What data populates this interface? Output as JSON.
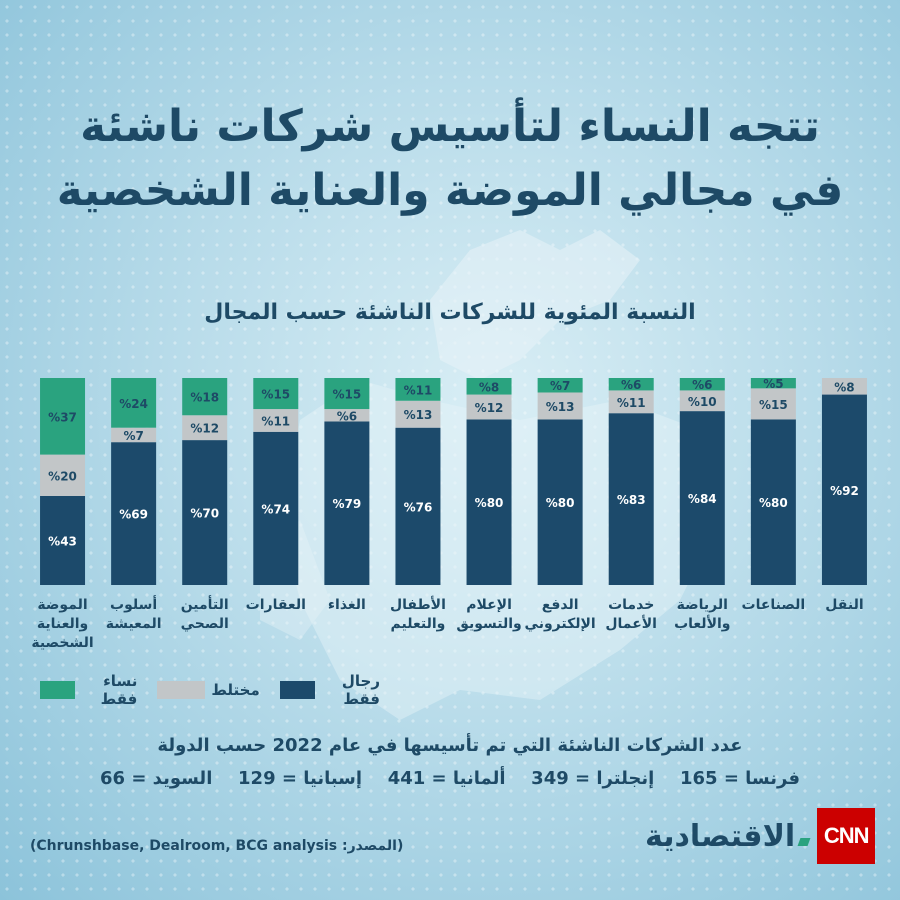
{
  "title_lines": [
    "تتجه النساء لتأسيس شركات ناشئة",
    "في مجالي الموضة والعناية الشخصية"
  ],
  "colors": {
    "men": "#1c4a6b",
    "mixed": "#c2c6c8",
    "women": "#2aa37f",
    "text": "#1e4a66"
  },
  "chart_data": {
    "type": "bar",
    "stacked": true,
    "title": "النسبة المئوية للشركات الناشئة حسب المجال",
    "ylim": [
      0,
      100
    ],
    "grid": false,
    "legend_position": "bottom-left",
    "categories": [
      "الموضة والعناية الشخصية",
      "أسلوب المعيشة",
      "التأمين الصحي",
      "العقارات",
      "الغذاء",
      "الأطفال والتعليم",
      "الإعلام والتسويق",
      "الدفع الإلكتروني",
      "خدمات الأعمال",
      "الرياضة والألعاب",
      "الصناعات",
      "النقل"
    ],
    "category_lines": [
      [
        "الموضة",
        "والعناية",
        "الشخصية"
      ],
      [
        "أسلوب",
        "المعيشة"
      ],
      [
        "التأمين",
        "الصحي"
      ],
      [
        "العقارات"
      ],
      [
        "الغذاء"
      ],
      [
        "الأطفال",
        "والتعليم"
      ],
      [
        "الإعلام",
        "والتسويق"
      ],
      [
        "الدفع",
        "الإلكتروني"
      ],
      [
        "خدمات",
        "الأعمال"
      ],
      [
        "الرياضة",
        "والألعاب"
      ],
      [
        "الصناعات"
      ],
      [
        "النقل"
      ]
    ],
    "series": [
      {
        "name": "رجال فقط",
        "color": "#1c4a6b",
        "values": [
          43,
          69,
          70,
          74,
          79,
          76,
          80,
          80,
          83,
          84,
          80,
          92
        ]
      },
      {
        "name": "مختلط",
        "color": "#c2c6c8",
        "values": [
          20,
          7,
          12,
          11,
          6,
          13,
          12,
          13,
          11,
          10,
          15,
          8
        ]
      },
      {
        "name": "نساء فقط",
        "color": "#2aa37f",
        "values": [
          37,
          24,
          18,
          15,
          15,
          11,
          8,
          7,
          6,
          6,
          5,
          0
        ]
      }
    ],
    "value_labels": [
      [
        "%43",
        "%20",
        "%37"
      ],
      [
        "%69",
        "%7",
        "%24"
      ],
      [
        "%70",
        "%12",
        "%18"
      ],
      [
        "%74",
        "%11",
        "%15"
      ],
      [
        "%79",
        "%6",
        "%15"
      ],
      [
        "%76",
        "%13",
        "%11"
      ],
      [
        "%80",
        "%12",
        "%8"
      ],
      [
        "%80",
        "%13",
        "%7"
      ],
      [
        "%83",
        "%11",
        "%6"
      ],
      [
        "%84",
        "%10",
        "%6"
      ],
      [
        "%80",
        "%15",
        "%5"
      ],
      [
        "%92",
        "%8",
        ""
      ]
    ]
  },
  "legend": {
    "men": "رجال فقط",
    "mixed": "مختلط",
    "women": "نساء فقط"
  },
  "counts": {
    "title": "عدد الشركات الناشئة التي تم تأسيسها في عام 2022 حسب الدولة",
    "items": [
      "فرنسا = 165",
      "إنجلترا = 349",
      "ألمانيا = 441",
      "إسبانيا = 129",
      "السويد = 66"
    ]
  },
  "source": "(المصدر: Chrunshbase, Dealroom, BCG analysis)",
  "logo": {
    "brand": "الاقتصادية",
    "cnn": "CNN"
  }
}
